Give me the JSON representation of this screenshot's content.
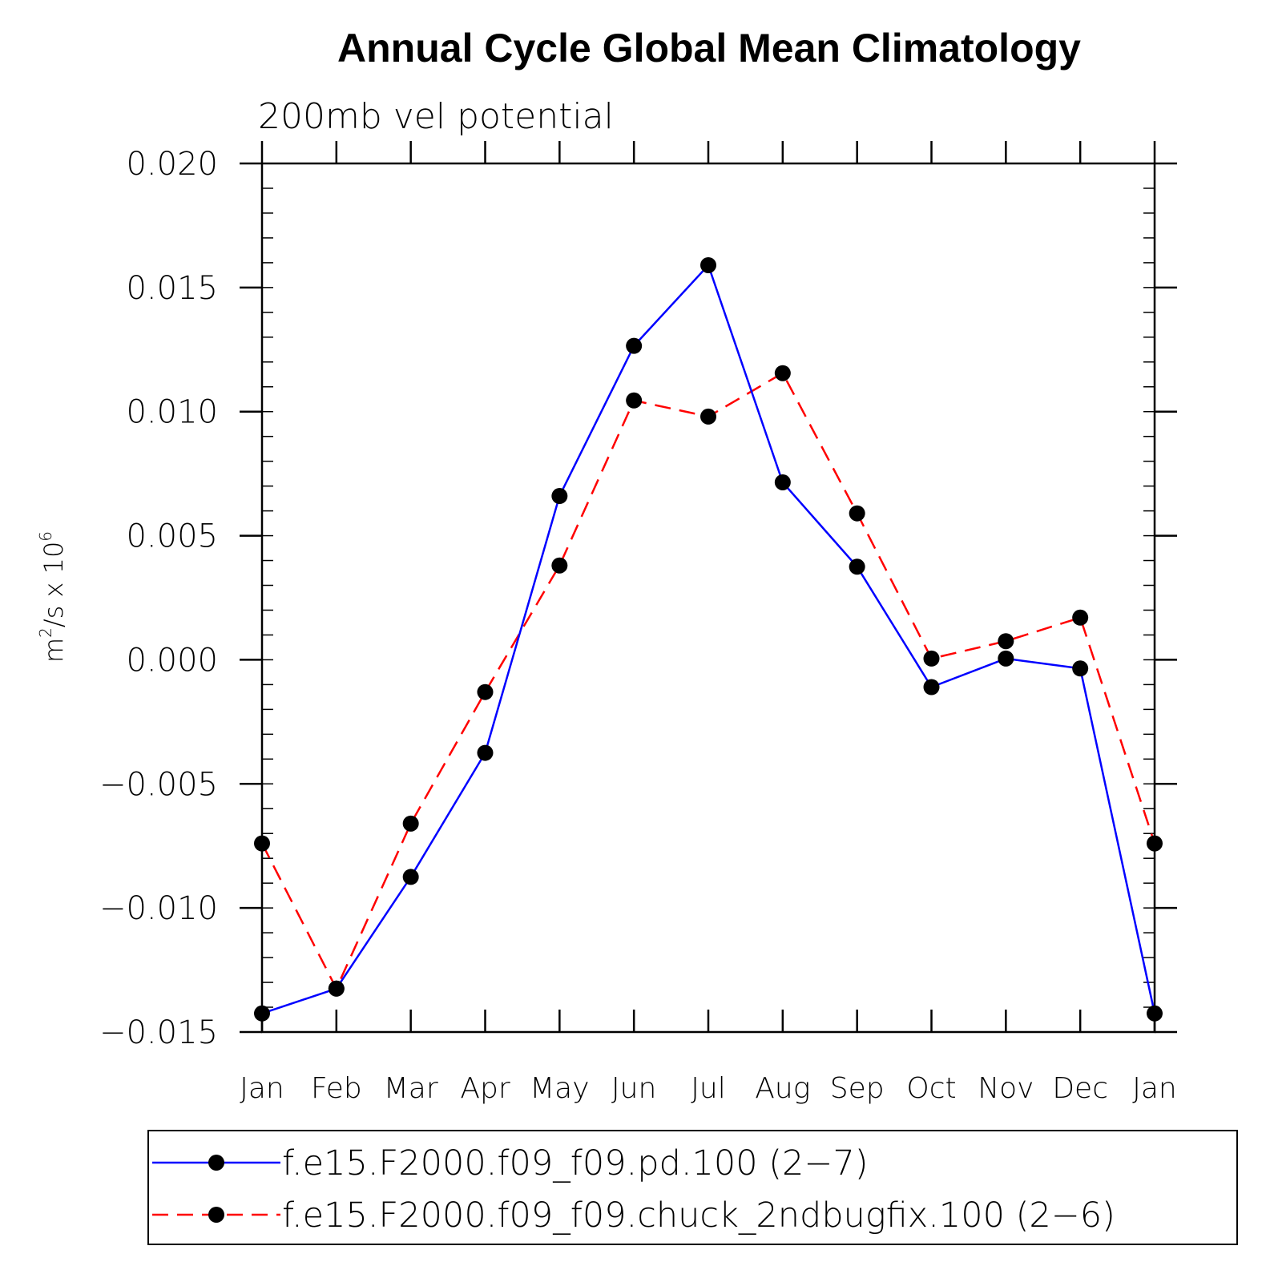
{
  "chart_data": {
    "type": "line",
    "title": "Annual Cycle Global Mean Climatology",
    "subtitle": "200mb vel potential",
    "ylabel_parts": {
      "base": "m",
      "sup": "2",
      "mid": "/s x 10",
      "sup2": "6"
    },
    "xlabel": "",
    "categories": [
      "Jan",
      "Feb",
      "Mar",
      "Apr",
      "May",
      "Jun",
      "Jul",
      "Aug",
      "Sep",
      "Oct",
      "Nov",
      "Dec",
      "Jan"
    ],
    "ylim": [
      -0.015,
      0.02
    ],
    "y_ticks": [
      0.02,
      0.015,
      0.01,
      0.005,
      0.0,
      -0.005,
      -0.01,
      -0.015
    ],
    "y_tick_labels": [
      "0.020",
      "0.015",
      "0.010",
      "0.005",
      "0.000",
      "−0.005",
      "−0.010",
      "−0.015"
    ],
    "grid": false,
    "legend_position": "bottom",
    "series": [
      {
        "name": "f.e15.F2000.f09_f09.pd.100 (2−7)",
        "color": "#0000ff",
        "dash": "solid",
        "values": [
          -0.01425,
          -0.01325,
          -0.00875,
          -0.00375,
          0.0066,
          0.01265,
          0.0159,
          0.00715,
          0.00375,
          -0.0011,
          5e-05,
          -0.00035,
          -0.01425
        ]
      },
      {
        "name": "f.e15.F2000.f09_f09.chuck_2ndbugfix.100 (2−6)",
        "color": "#ff0000",
        "dash": "dashed",
        "values": [
          -0.0074,
          -0.01325,
          -0.0066,
          -0.0013,
          0.0038,
          0.01045,
          0.0098,
          0.01155,
          0.0059,
          5e-05,
          0.00075,
          0.0017,
          -0.0074
        ]
      }
    ]
  }
}
